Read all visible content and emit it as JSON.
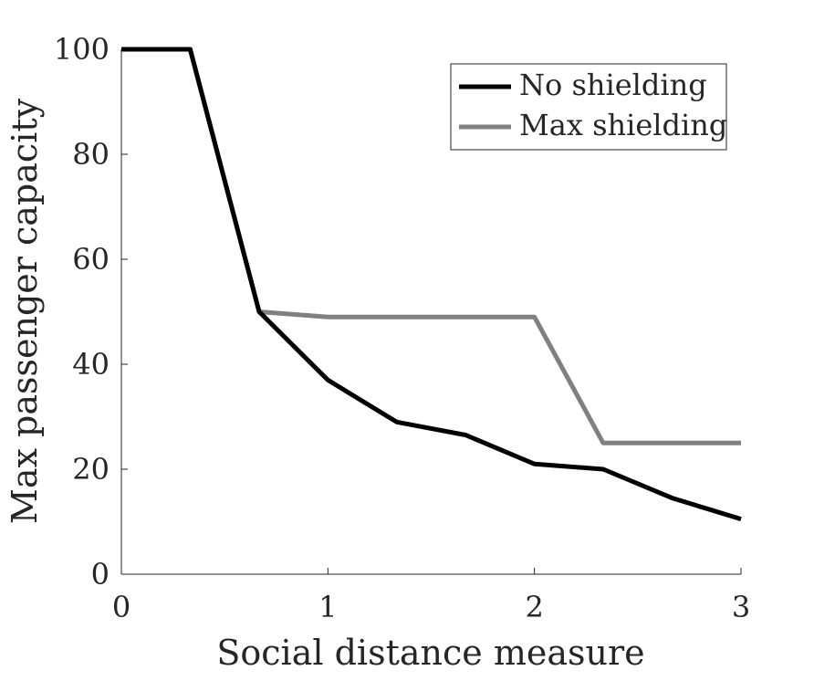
{
  "chart_data": {
    "type": "line",
    "xlabel": "Social distance measure",
    "ylabel": "Max passenger capacity",
    "xlim": [
      0,
      3
    ],
    "ylim": [
      0,
      100
    ],
    "xticks": [
      "0",
      "1",
      "2",
      "3"
    ],
    "yticks": [
      "0",
      "20",
      "40",
      "60",
      "80",
      "100"
    ],
    "grid": false,
    "legend_position": "top-right",
    "series": [
      {
        "name": "No shielding",
        "color": "#000000",
        "x": [
          0,
          0.333,
          0.667,
          1,
          1.333,
          1.667,
          2,
          2.333,
          2.667,
          3
        ],
        "y": [
          100,
          100,
          50,
          37,
          29,
          26.5,
          21,
          20,
          14.5,
          10.5
        ]
      },
      {
        "name": "Max shielding",
        "color": "#808080",
        "x": [
          0,
          0.333,
          0.667,
          1,
          1.333,
          1.667,
          2,
          2.333,
          2.667,
          3
        ],
        "y": [
          100,
          100,
          50,
          49,
          49,
          49,
          49,
          25,
          25,
          25
        ]
      }
    ]
  }
}
